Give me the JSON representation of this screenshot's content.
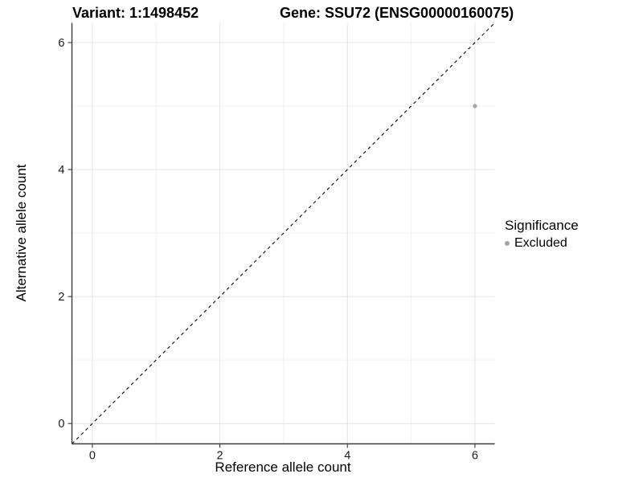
{
  "figure": {
    "title": {
      "variant": "Variant: 1:1498452",
      "gene": "Gene: SSU72 (ENSG00000160075)"
    },
    "legend": {
      "title": "Significance",
      "items": [
        {
          "label": "Excluded",
          "color": "#a6a6a6"
        }
      ]
    }
  },
  "chart_data": {
    "type": "scatter",
    "title": "Variant: 1:1498452    Gene: SSU72 (ENSG00000160075)",
    "xlabel": "Reference allele count",
    "ylabel": "Alternative allele count",
    "xlim": [
      -0.32,
      6.31
    ],
    "ylim": [
      -0.32,
      6.31
    ],
    "x_ticks": [
      0,
      2,
      4,
      6
    ],
    "y_ticks": [
      0,
      2,
      4,
      6
    ],
    "minor_gridlines_x": [
      1,
      3,
      5
    ],
    "minor_gridlines_y": [
      1,
      3,
      5
    ],
    "grid": true,
    "legend_position": "right",
    "series": [
      {
        "name": "Excluded",
        "color": "#a6a6a6",
        "points": [
          {
            "x": 6,
            "y": 5
          }
        ]
      }
    ],
    "reference_line": {
      "type": "identity",
      "from": -0.32,
      "to": 6.31,
      "style": "dashed",
      "color": "#000000"
    },
    "colors": {
      "grid_major": "#e4e4e4",
      "grid_minor": "#f0f0f0",
      "axis_line": "#3a3a3a",
      "tick_label": "#1a1a1a",
      "background": "#ffffff"
    }
  }
}
